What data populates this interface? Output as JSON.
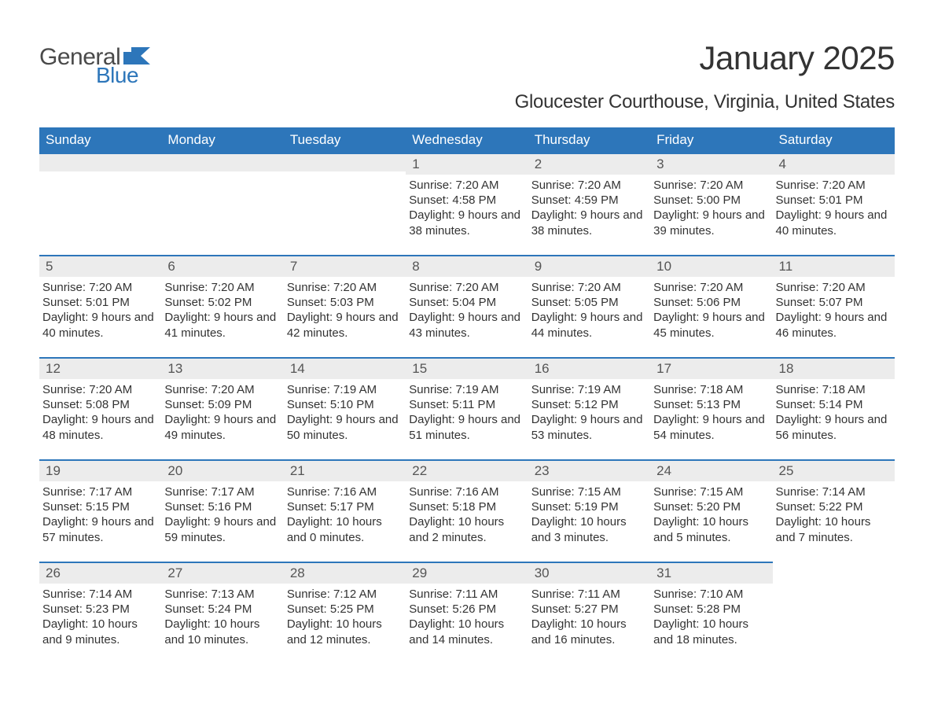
{
  "brand": {
    "general": "General",
    "blue": "Blue"
  },
  "title": "January 2025",
  "location": "Gloucester Courthouse, Virginia, United States",
  "colors": {
    "header_bg": "#2d76ba",
    "header_text": "#ffffff",
    "daynum_bg": "#ececec",
    "border_top": "#2d76ba",
    "body_text": "#333333",
    "page_bg": "#ffffff"
  },
  "typography": {
    "title_fontsize": 42,
    "location_fontsize": 24,
    "header_fontsize": 17,
    "daynum_fontsize": 17,
    "body_fontsize": 15
  },
  "weekdays": [
    "Sunday",
    "Monday",
    "Tuesday",
    "Wednesday",
    "Thursday",
    "Friday",
    "Saturday"
  ],
  "weeks": [
    [
      null,
      null,
      null,
      {
        "day": "1",
        "sunrise": "7:20 AM",
        "sunset": "4:58 PM",
        "daylight": "9 hours and 38 minutes."
      },
      {
        "day": "2",
        "sunrise": "7:20 AM",
        "sunset": "4:59 PM",
        "daylight": "9 hours and 38 minutes."
      },
      {
        "day": "3",
        "sunrise": "7:20 AM",
        "sunset": "5:00 PM",
        "daylight": "9 hours and 39 minutes."
      },
      {
        "day": "4",
        "sunrise": "7:20 AM",
        "sunset": "5:01 PM",
        "daylight": "9 hours and 40 minutes."
      }
    ],
    [
      {
        "day": "5",
        "sunrise": "7:20 AM",
        "sunset": "5:01 PM",
        "daylight": "9 hours and 40 minutes."
      },
      {
        "day": "6",
        "sunrise": "7:20 AM",
        "sunset": "5:02 PM",
        "daylight": "9 hours and 41 minutes."
      },
      {
        "day": "7",
        "sunrise": "7:20 AM",
        "sunset": "5:03 PM",
        "daylight": "9 hours and 42 minutes."
      },
      {
        "day": "8",
        "sunrise": "7:20 AM",
        "sunset": "5:04 PM",
        "daylight": "9 hours and 43 minutes."
      },
      {
        "day": "9",
        "sunrise": "7:20 AM",
        "sunset": "5:05 PM",
        "daylight": "9 hours and 44 minutes."
      },
      {
        "day": "10",
        "sunrise": "7:20 AM",
        "sunset": "5:06 PM",
        "daylight": "9 hours and 45 minutes."
      },
      {
        "day": "11",
        "sunrise": "7:20 AM",
        "sunset": "5:07 PM",
        "daylight": "9 hours and 46 minutes."
      }
    ],
    [
      {
        "day": "12",
        "sunrise": "7:20 AM",
        "sunset": "5:08 PM",
        "daylight": "9 hours and 48 minutes."
      },
      {
        "day": "13",
        "sunrise": "7:20 AM",
        "sunset": "5:09 PM",
        "daylight": "9 hours and 49 minutes."
      },
      {
        "day": "14",
        "sunrise": "7:19 AM",
        "sunset": "5:10 PM",
        "daylight": "9 hours and 50 minutes."
      },
      {
        "day": "15",
        "sunrise": "7:19 AM",
        "sunset": "5:11 PM",
        "daylight": "9 hours and 51 minutes."
      },
      {
        "day": "16",
        "sunrise": "7:19 AM",
        "sunset": "5:12 PM",
        "daylight": "9 hours and 53 minutes."
      },
      {
        "day": "17",
        "sunrise": "7:18 AM",
        "sunset": "5:13 PM",
        "daylight": "9 hours and 54 minutes."
      },
      {
        "day": "18",
        "sunrise": "7:18 AM",
        "sunset": "5:14 PM",
        "daylight": "9 hours and 56 minutes."
      }
    ],
    [
      {
        "day": "19",
        "sunrise": "7:17 AM",
        "sunset": "5:15 PM",
        "daylight": "9 hours and 57 minutes."
      },
      {
        "day": "20",
        "sunrise": "7:17 AM",
        "sunset": "5:16 PM",
        "daylight": "9 hours and 59 minutes."
      },
      {
        "day": "21",
        "sunrise": "7:16 AM",
        "sunset": "5:17 PM",
        "daylight": "10 hours and 0 minutes."
      },
      {
        "day": "22",
        "sunrise": "7:16 AM",
        "sunset": "5:18 PM",
        "daylight": "10 hours and 2 minutes."
      },
      {
        "day": "23",
        "sunrise": "7:15 AM",
        "sunset": "5:19 PM",
        "daylight": "10 hours and 3 minutes."
      },
      {
        "day": "24",
        "sunrise": "7:15 AM",
        "sunset": "5:20 PM",
        "daylight": "10 hours and 5 minutes."
      },
      {
        "day": "25",
        "sunrise": "7:14 AM",
        "sunset": "5:22 PM",
        "daylight": "10 hours and 7 minutes."
      }
    ],
    [
      {
        "day": "26",
        "sunrise": "7:14 AM",
        "sunset": "5:23 PM",
        "daylight": "10 hours and 9 minutes."
      },
      {
        "day": "27",
        "sunrise": "7:13 AM",
        "sunset": "5:24 PM",
        "daylight": "10 hours and 10 minutes."
      },
      {
        "day": "28",
        "sunrise": "7:12 AM",
        "sunset": "5:25 PM",
        "daylight": "10 hours and 12 minutes."
      },
      {
        "day": "29",
        "sunrise": "7:11 AM",
        "sunset": "5:26 PM",
        "daylight": "10 hours and 14 minutes."
      },
      {
        "day": "30",
        "sunrise": "7:11 AM",
        "sunset": "5:27 PM",
        "daylight": "10 hours and 16 minutes."
      },
      {
        "day": "31",
        "sunrise": "7:10 AM",
        "sunset": "5:28 PM",
        "daylight": "10 hours and 18 minutes."
      },
      null
    ]
  ],
  "labels": {
    "sunrise": "Sunrise: ",
    "sunset": "Sunset: ",
    "daylight": "Daylight: "
  }
}
